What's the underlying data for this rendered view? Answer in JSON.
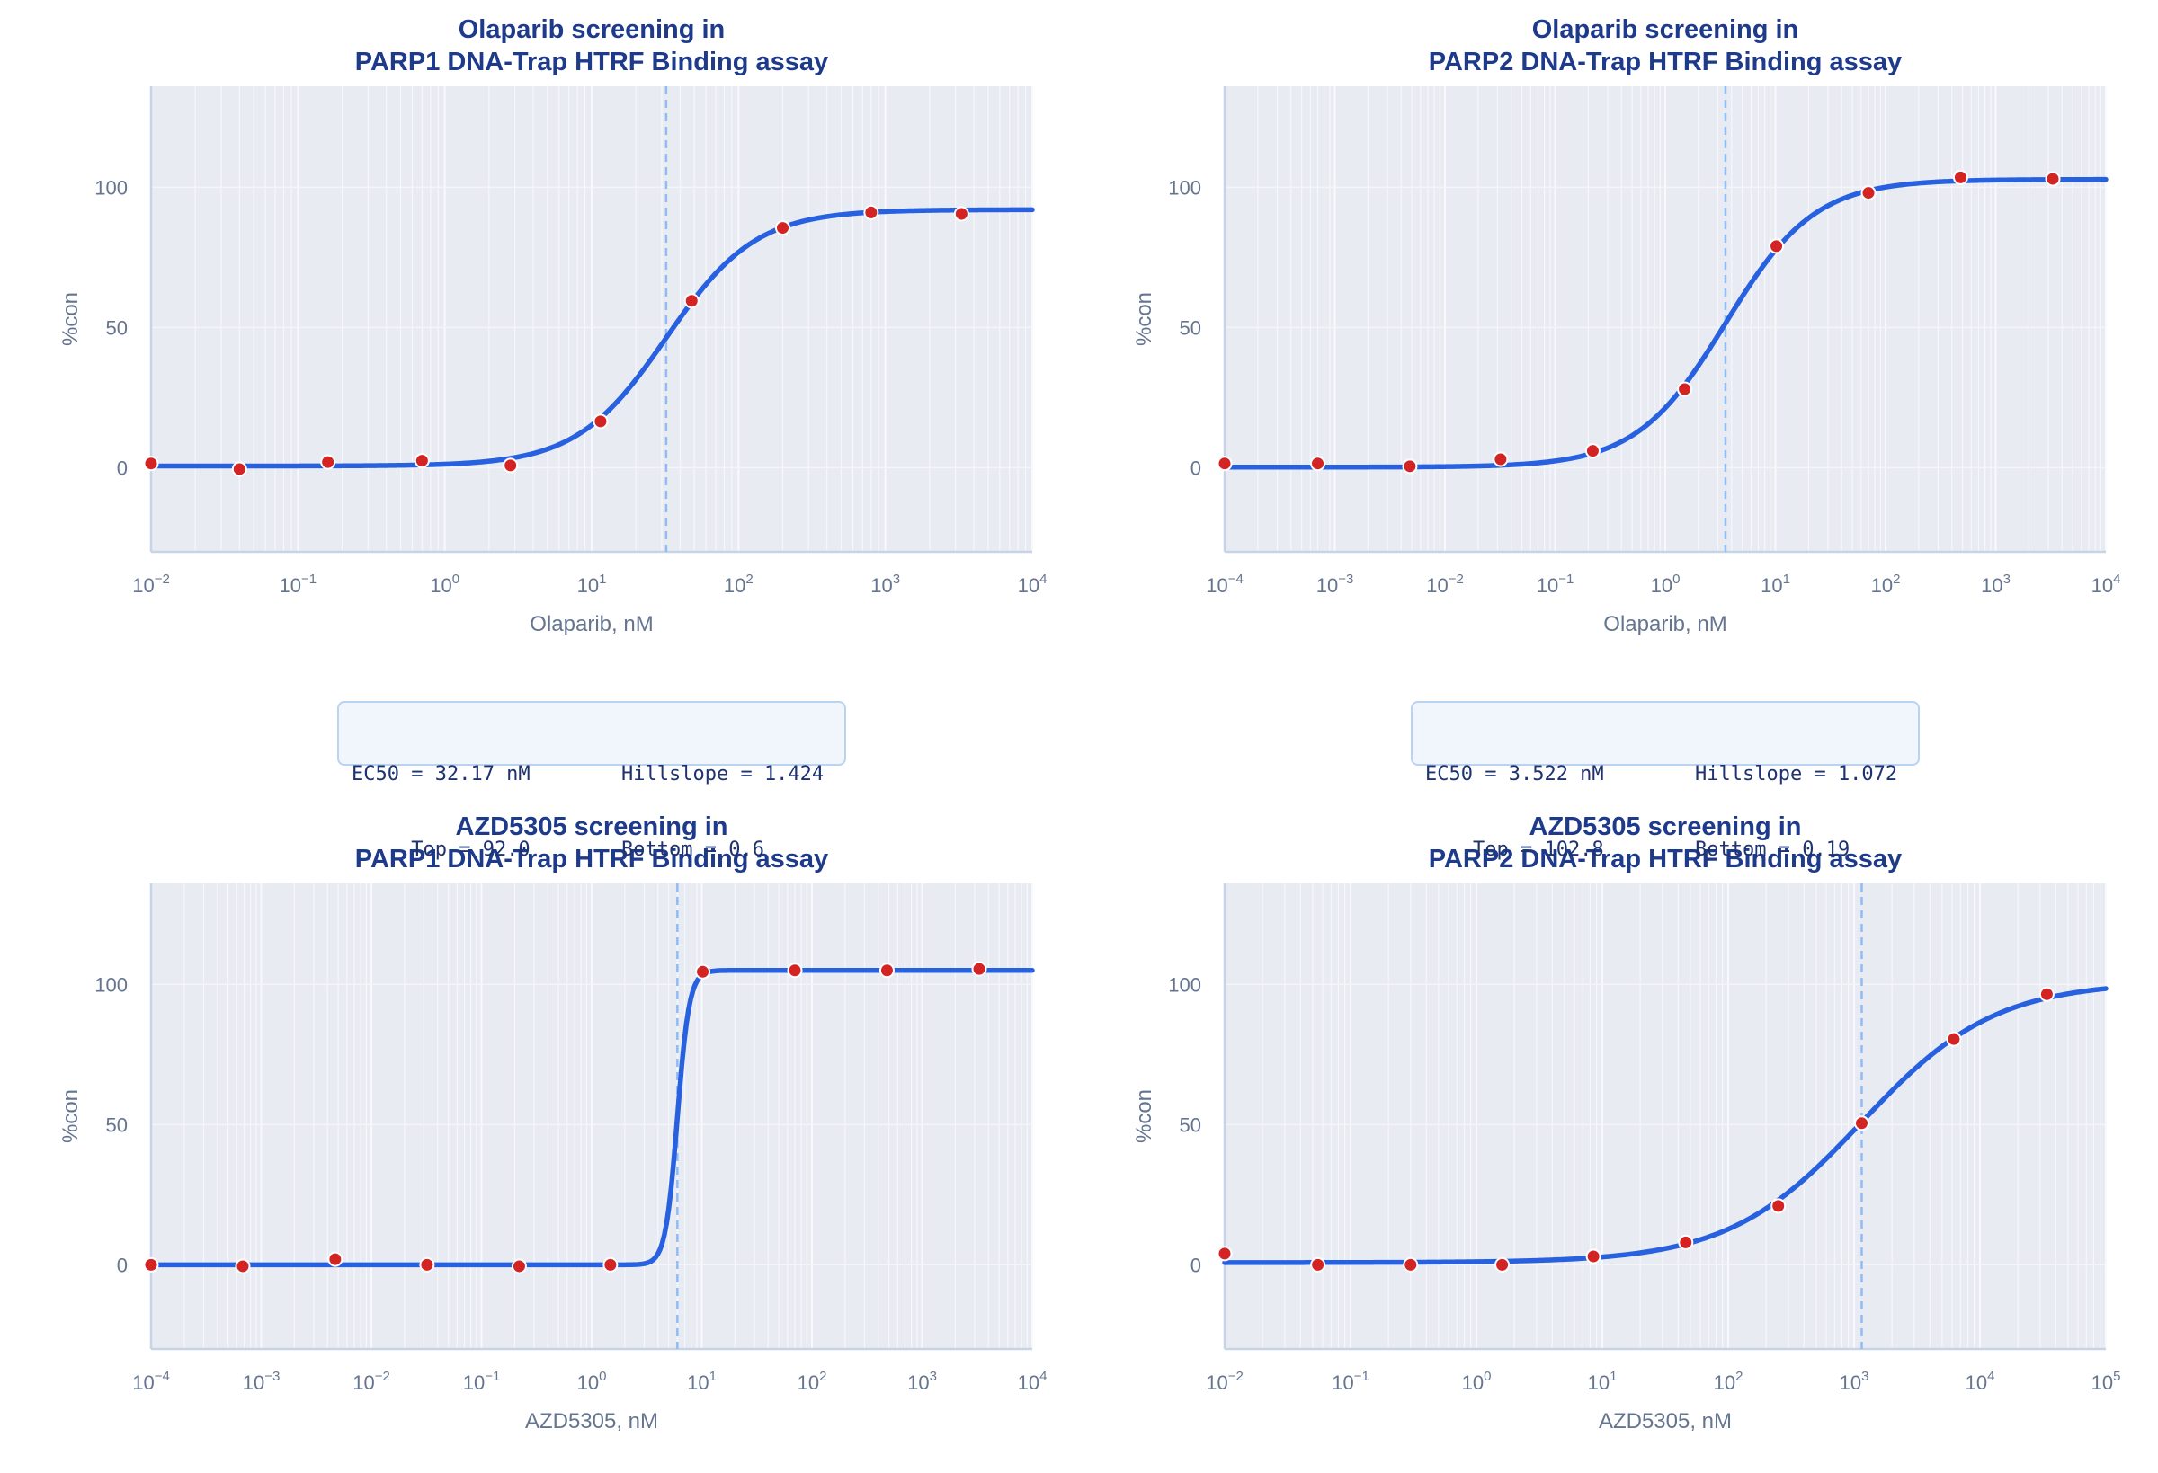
{
  "colors": {
    "title": "#1e3a8a",
    "axis_text": "#66758f",
    "curve": "#2761e0",
    "point_fill": "#d42323",
    "point_edge": "#ffffff",
    "ec50_line": "#8fbcf5",
    "plot_bg": "#e9ebf3",
    "spine": "#c7d3e6",
    "box_bg": "#f1f6fd",
    "box_border": "#b9d3f1"
  },
  "chart_data": [
    {
      "type": "scatter",
      "title": "Olaparib screening in\nPARP1 DNA-Trap HTRF Binding assay",
      "xlabel": "Olaparib, nM",
      "ylabel": "%con",
      "xscale": "log",
      "xlim": [
        0.01,
        10000
      ],
      "ylim": [
        -30,
        136
      ],
      "yticks": [
        0,
        50,
        100
      ],
      "xtick_exponents": [
        -2,
        -1,
        0,
        1,
        2,
        3,
        4
      ],
      "x": [
        0.01,
        0.04,
        0.16,
        0.7,
        2.8,
        11.5,
        48,
        200,
        800,
        3300
      ],
      "y": [
        1.5,
        -0.5,
        2,
        2.5,
        0.8,
        16.5,
        59.5,
        85.5,
        91,
        90.5
      ],
      "fit": {
        "top": 92.0,
        "bottom": 0.6,
        "ec50": 32.17,
        "hill": 1.424
      },
      "params": [
        {
          "left": "EC50 = 32.17 nM",
          "right": "Hillslope = 1.424"
        },
        {
          "left": "     Top = 92.0",
          "right": "Bottom = 0.6"
        }
      ]
    },
    {
      "type": "scatter",
      "title": "Olaparib screening in\nPARP2 DNA-Trap HTRF Binding assay",
      "xlabel": "Olaparib, nM",
      "ylabel": "%con",
      "xscale": "log",
      "xlim": [
        0.0001,
        10000
      ],
      "ylim": [
        -30,
        136
      ],
      "yticks": [
        0,
        50,
        100
      ],
      "xtick_exponents": [
        -4,
        -3,
        -2,
        -1,
        0,
        1,
        2,
        3,
        4
      ],
      "x": [
        0.0001,
        0.0007,
        0.0048,
        0.032,
        0.22,
        1.5,
        10.2,
        70,
        480,
        3300
      ],
      "y": [
        1.5,
        1.5,
        0.5,
        3,
        6,
        28,
        79,
        98,
        103.5,
        103
      ],
      "fit": {
        "top": 102.8,
        "bottom": 0.19,
        "ec50": 3.522,
        "hill": 1.072
      },
      "params": [
        {
          "left": "EC50 = 3.522 nM",
          "right": "Hillslope = 1.072"
        },
        {
          "left": "    Top = 102.8",
          "right": "Bottom = 0.19"
        }
      ]
    },
    {
      "type": "scatter",
      "title": "AZD5305 screening in\nPARP1 DNA-Trap HTRF Binding assay",
      "xlabel": "AZD5305, nM",
      "ylabel": "%con",
      "xscale": "log",
      "xlim": [
        0.0001,
        10000
      ],
      "ylim": [
        -30,
        136
      ],
      "yticks": [
        0,
        50,
        100
      ],
      "xtick_exponents": [
        -4,
        -3,
        -2,
        -1,
        0,
        1,
        2,
        3,
        4
      ],
      "x": [
        0.0001,
        0.00068,
        0.0047,
        0.032,
        0.22,
        1.48,
        10.2,
        70,
        480,
        3300
      ],
      "y": [
        0,
        -0.5,
        2,
        0,
        -0.5,
        0,
        104.5,
        105,
        105,
        105.5
      ],
      "fit": {
        "top": 105,
        "bottom": 0,
        "ec50": 6.0,
        "hill": 8
      }
    },
    {
      "type": "scatter",
      "title": "AZD5305 screening in\nPARP2 DNA-Trap HTRF Binding assay",
      "xlabel": "AZD5305, nM",
      "ylabel": "%con",
      "xscale": "log",
      "xlim": [
        0.01,
        100000
      ],
      "ylim": [
        -30,
        136
      ],
      "yticks": [
        0,
        50,
        100
      ],
      "xtick_exponents": [
        -2,
        -1,
        0,
        1,
        2,
        3,
        4,
        5
      ],
      "x": [
        0.01,
        0.055,
        0.3,
        1.6,
        8.5,
        46,
        250,
        1150,
        6200,
        34000
      ],
      "y": [
        4,
        0,
        0,
        0,
        3,
        8,
        21,
        50.5,
        80.5,
        96.5
      ],
      "fit": {
        "top": 101,
        "bottom": 0.8,
        "ec50": 1150,
        "hill": 0.82
      }
    }
  ]
}
